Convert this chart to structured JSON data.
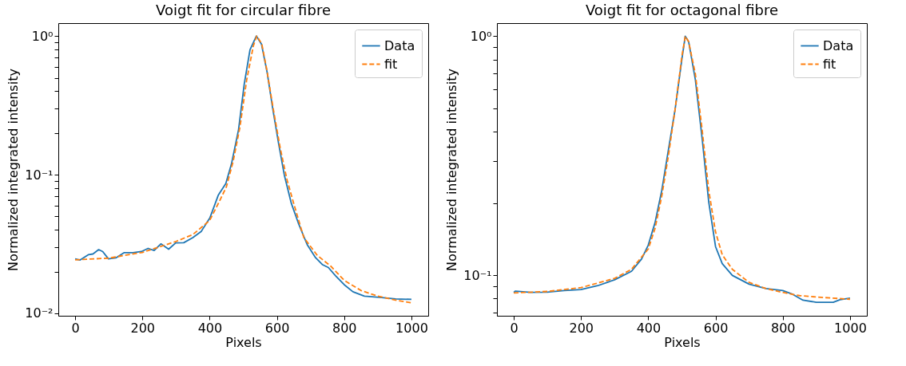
{
  "chart_data": [
    {
      "type": "line",
      "title": "Voigt fit for circular fibre",
      "xlabel": "Pixels",
      "ylabel": "Normalized integrated intensity",
      "log": "y",
      "legend": "top right",
      "grid": false,
      "xlim": [
        -50,
        1050
      ],
      "xticks": [
        0,
        200,
        400,
        600,
        800,
        1000
      ],
      "ylim": [
        0.0096,
        1.24
      ],
      "yticks": [
        {
          "value": 0.01,
          "label": "10⁻²"
        },
        {
          "value": 0.02,
          "label": null
        },
        {
          "value": 0.03,
          "label": null
        },
        {
          "value": 0.04,
          "label": null
        },
        {
          "value": 0.05,
          "label": null
        },
        {
          "value": 0.06,
          "label": null
        },
        {
          "value": 0.07,
          "label": null
        },
        {
          "value": 0.08,
          "label": null
        },
        {
          "value": 0.09,
          "label": null
        },
        {
          "value": 0.1,
          "label": "10⁻¹"
        },
        {
          "value": 0.2,
          "label": null
        },
        {
          "value": 0.3,
          "label": null
        },
        {
          "value": 0.4,
          "label": null
        },
        {
          "value": 0.5,
          "label": null
        },
        {
          "value": 0.6,
          "label": null
        },
        {
          "value": 0.7,
          "label": null
        },
        {
          "value": 0.8,
          "label": null
        },
        {
          "value": 0.9,
          "label": null
        },
        {
          "value": 1,
          "label": "10⁰"
        }
      ],
      "series": [
        {
          "name": "Data",
          "color": "#1f77b4",
          "line_style": "solid",
          "x": [
            0,
            14,
            40,
            53,
            70,
            82,
            99,
            121,
            146,
            172,
            197,
            217,
            235,
            255,
            278,
            299,
            323,
            350,
            375,
            401,
            426,
            448,
            465,
            486,
            503,
            520,
            539,
            554,
            571,
            588,
            605,
            622,
            643,
            664,
            690,
            715,
            736,
            753,
            775,
            800,
            826,
            860,
            911,
            953,
            1000
          ],
          "values": [
            0.0247,
            0.0242,
            0.0265,
            0.0268,
            0.0288,
            0.0279,
            0.0247,
            0.0251,
            0.0274,
            0.0274,
            0.0279,
            0.0294,
            0.0284,
            0.0317,
            0.029,
            0.0322,
            0.0323,
            0.0352,
            0.039,
            0.049,
            0.0715,
            0.0863,
            0.12,
            0.212,
            0.452,
            0.797,
            1.0,
            0.877,
            0.546,
            0.295,
            0.168,
            0.0995,
            0.062,
            0.0446,
            0.0313,
            0.0252,
            0.0224,
            0.0214,
            0.0186,
            0.0161,
            0.0143,
            0.0133,
            0.013,
            0.0127,
            0.0126
          ]
        },
        {
          "name": "fit",
          "color": "#ff7f0e",
          "line_style": "dashed",
          "x": [
            0,
            100,
            200,
            300,
            350,
            400,
            430,
            450,
            470,
            490,
            510,
            530,
            540,
            555,
            570,
            590,
            610,
            630,
            650,
            680,
            720,
            760,
            800,
            850,
            900,
            950,
            1000
          ],
          "values": [
            0.0243,
            0.025,
            0.0275,
            0.033,
            0.037,
            0.0467,
            0.065,
            0.082,
            0.125,
            0.22,
            0.48,
            0.85,
            1.0,
            0.88,
            0.57,
            0.29,
            0.155,
            0.092,
            0.062,
            0.0352,
            0.0262,
            0.0219,
            0.0173,
            0.0146,
            0.0133,
            0.0125,
            0.0119
          ]
        }
      ]
    },
    {
      "type": "line",
      "title": "Voigt fit for octagonal fibre",
      "xlabel": "Pixels",
      "ylabel": "Normalized integrated intensity",
      "log": "y",
      "legend": "top right",
      "grid": false,
      "xlim": [
        -50,
        1050
      ],
      "xticks": [
        0,
        200,
        400,
        600,
        800,
        1000
      ],
      "ylim": [
        0.0678,
        1.135
      ],
      "yticks": [
        {
          "value": 0.07,
          "label": null
        },
        {
          "value": 0.08,
          "label": null
        },
        {
          "value": 0.09,
          "label": null
        },
        {
          "value": 0.1,
          "label": "10⁻¹"
        },
        {
          "value": 0.2,
          "label": null
        },
        {
          "value": 0.3,
          "label": null
        },
        {
          "value": 0.4,
          "label": null
        },
        {
          "value": 0.5,
          "label": null
        },
        {
          "value": 0.6,
          "label": null
        },
        {
          "value": 0.7,
          "label": null
        },
        {
          "value": 0.8,
          "label": null
        },
        {
          "value": 0.9,
          "label": null
        },
        {
          "value": 1,
          "label": "10⁰"
        }
      ],
      "series": [
        {
          "name": "Data",
          "color": "#1f77b4",
          "line_style": "solid",
          "x": [
            0,
            5,
            50,
            100,
            150,
            200,
            250,
            300,
            350,
            380,
            400,
            420,
            440,
            460,
            480,
            500,
            510,
            520,
            540,
            560,
            580,
            600,
            620,
            650,
            700,
            750,
            800,
            830,
            860,
            900,
            950,
            970,
            1000
          ],
          "values": [
            0.0849,
            0.086,
            0.0849,
            0.0851,
            0.0864,
            0.0873,
            0.0906,
            0.0959,
            0.104,
            0.117,
            0.134,
            0.166,
            0.226,
            0.336,
            0.497,
            0.803,
            1.0,
            0.95,
            0.659,
            0.376,
            0.202,
            0.132,
            0.112,
            0.1,
            0.0919,
            0.0881,
            0.0864,
            0.0833,
            0.0788,
            0.0772,
            0.0772,
            0.0791,
            0.0803
          ]
        },
        {
          "name": "fit",
          "color": "#ff7f0e",
          "line_style": "dashed",
          "x": [
            0,
            100,
            200,
            300,
            350,
            400,
            420,
            440,
            460,
            480,
            500,
            510,
            520,
            540,
            560,
            580,
            600,
            620,
            650,
            700,
            750,
            800,
            850,
            900,
            1000
          ],
          "values": [
            0.0845,
            0.0857,
            0.0889,
            0.0972,
            0.106,
            0.129,
            0.157,
            0.214,
            0.317,
            0.497,
            0.826,
            1.0,
            0.95,
            0.697,
            0.409,
            0.226,
            0.152,
            0.122,
            0.106,
            0.0935,
            0.0881,
            0.0849,
            0.0823,
            0.0812,
            0.0795
          ]
        }
      ]
    }
  ]
}
